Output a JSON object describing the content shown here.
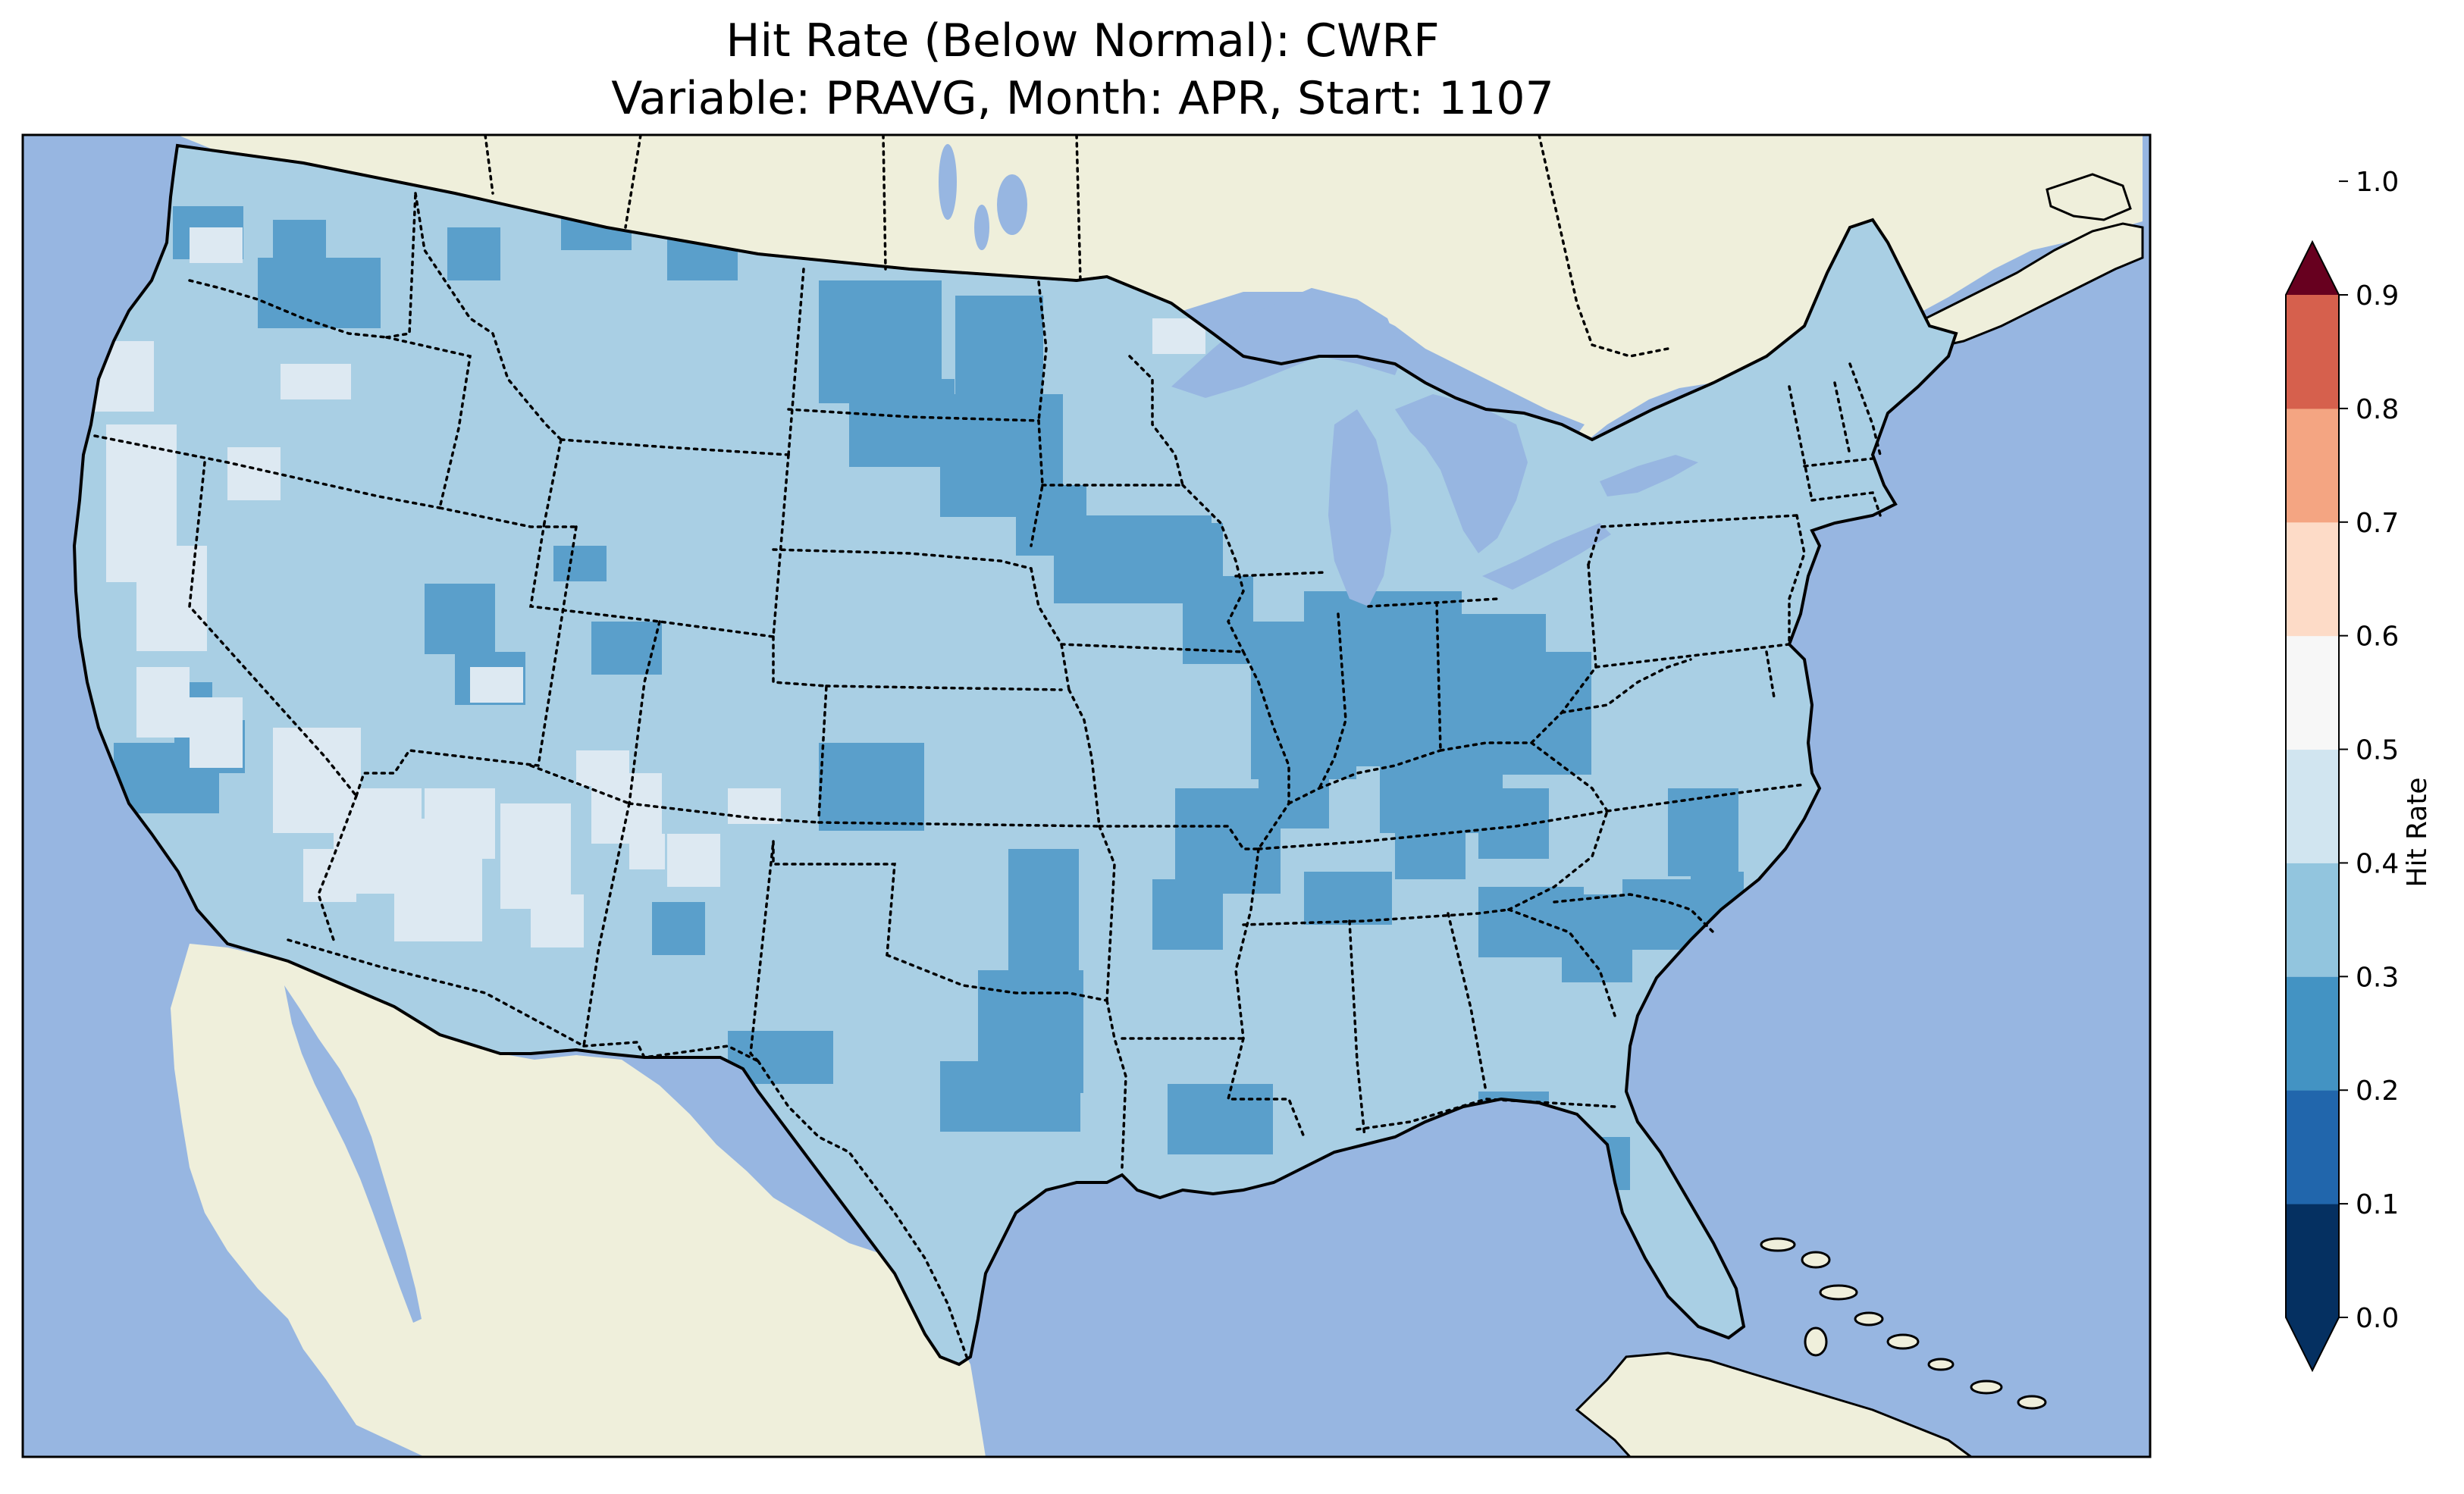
{
  "figure": {
    "title_line1": "Hit Rate (Below Normal): CWRF",
    "title_line2": "Variable: PRAVG, Month: APR, Start: 1107"
  },
  "map": {
    "region": "Contiguous United States",
    "projection": "Lambert conformal",
    "ocean_color": "#97b6e1",
    "land_color": "#efefdb",
    "coastline_color": "#000000",
    "state_border_style": "dotted",
    "dominant_class": "0.3-0.4"
  },
  "colorbar": {
    "label": "Hit Rate",
    "extend": "both",
    "levels": [
      0.0,
      0.1,
      0.2,
      0.3,
      0.4,
      0.5,
      0.6,
      0.7,
      0.8,
      0.9,
      1.0
    ],
    "tick_labels": [
      "0.0",
      "0.1",
      "0.2",
      "0.3",
      "0.4",
      "0.5",
      "0.6",
      "0.7",
      "0.8",
      "0.9",
      "1.0"
    ],
    "colors": [
      "#053061",
      "#2166ac",
      "#4393c3",
      "#92c5de",
      "#d1e5f0",
      "#f7f7f7",
      "#fddbc7",
      "#f4a582",
      "#d6604d",
      "#b2182b",
      "#67001f"
    ],
    "under_color": "#053061",
    "over_color": "#67001f"
  },
  "palette": {
    "class_020_030": "#5a9fcb",
    "class_030_040": "#a9cfe4",
    "class_040_050": "#dde9f2"
  }
}
